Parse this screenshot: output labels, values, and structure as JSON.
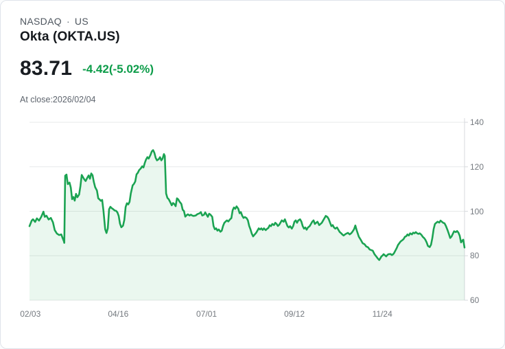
{
  "header": {
    "exchange": "NASDAQ",
    "separator": "·",
    "region": "US",
    "title": "Okta (OKTA.US)",
    "price": "83.71",
    "change": "-4.42(-5.02%)",
    "as_of": "At close:2026/02/04"
  },
  "colors": {
    "change_green": "#0c9c49",
    "line_green": "#1ba352",
    "area_opacity": 0.09,
    "grid": "#e7e9ea",
    "axis": "#d7dadd",
    "axis_text": "#74797f"
  },
  "chart_data": {
    "type": "area",
    "title": "Okta (OKTA.US) 1-year daily price",
    "series_name": "OKTA.US",
    "xlabel": "",
    "ylabel": "",
    "grid": true,
    "legend": null,
    "ylim": [
      60,
      140
    ],
    "yticks": [
      60,
      80,
      100,
      120,
      140
    ],
    "xticks": [
      {
        "label": "02/03",
        "pos": 0.002
      },
      {
        "label": "04/16",
        "pos": 0.204
      },
      {
        "label": "07/01",
        "pos": 0.407
      },
      {
        "label": "09/12",
        "pos": 0.609
      },
      {
        "label": "11/24",
        "pos": 0.811
      }
    ],
    "last_close": 83.71,
    "last_close_date": "2026/02/04",
    "points_format": "[fraction_of_x_range, price]",
    "points": [
      [
        0.0,
        93.3
      ],
      [
        0.005,
        95.8
      ],
      [
        0.008,
        96.4
      ],
      [
        0.013,
        95.2
      ],
      [
        0.017,
        96.8
      ],
      [
        0.022,
        95.8
      ],
      [
        0.027,
        97.5
      ],
      [
        0.032,
        99.8
      ],
      [
        0.035,
        97.5
      ],
      [
        0.039,
        98.0
      ],
      [
        0.044,
        96.3
      ],
      [
        0.049,
        97.0
      ],
      [
        0.054,
        95.0
      ],
      [
        0.058,
        91.5
      ],
      [
        0.063,
        90.0
      ],
      [
        0.068,
        89.3
      ],
      [
        0.073,
        89.6
      ],
      [
        0.076,
        88.0
      ],
      [
        0.079,
        86.5
      ],
      [
        0.08,
        85.8
      ],
      [
        0.082,
        116.0
      ],
      [
        0.085,
        116.5
      ],
      [
        0.088,
        112.2
      ],
      [
        0.092,
        112.9
      ],
      [
        0.095,
        110.6
      ],
      [
        0.098,
        105.4
      ],
      [
        0.101,
        106.4
      ],
      [
        0.104,
        104.8
      ],
      [
        0.107,
        107.8
      ],
      [
        0.11,
        106.3
      ],
      [
        0.114,
        107.5
      ],
      [
        0.117,
        111.3
      ],
      [
        0.12,
        116.3
      ],
      [
        0.123,
        115.3
      ],
      [
        0.126,
        114.3
      ],
      [
        0.129,
        113.6
      ],
      [
        0.133,
        115.1
      ],
      [
        0.136,
        116.1
      ],
      [
        0.139,
        114.6
      ],
      [
        0.142,
        117.0
      ],
      [
        0.145,
        116.2
      ],
      [
        0.148,
        113.1
      ],
      [
        0.151,
        110.8
      ],
      [
        0.155,
        109.3
      ],
      [
        0.158,
        105.8
      ],
      [
        0.161,
        105.3
      ],
      [
        0.164,
        104.7
      ],
      [
        0.167,
        105.1
      ],
      [
        0.17,
        100.2
      ],
      [
        0.174,
        91.9
      ],
      [
        0.177,
        90.2
      ],
      [
        0.18,
        92.3
      ],
      [
        0.183,
        100.9
      ],
      [
        0.186,
        102.0
      ],
      [
        0.189,
        101.4
      ],
      [
        0.192,
        101.0
      ],
      [
        0.196,
        100.3
      ],
      [
        0.199,
        100.2
      ],
      [
        0.202,
        99.5
      ],
      [
        0.205,
        97.9
      ],
      [
        0.208,
        94.4
      ],
      [
        0.211,
        92.8
      ],
      [
        0.215,
        93.5
      ],
      [
        0.218,
        96.1
      ],
      [
        0.221,
        101.9
      ],
      [
        0.224,
        103.6
      ],
      [
        0.227,
        103.1
      ],
      [
        0.23,
        104.2
      ],
      [
        0.233,
        108.1
      ],
      [
        0.237,
        111.6
      ],
      [
        0.24,
        112.3
      ],
      [
        0.243,
        113.4
      ],
      [
        0.246,
        116.6
      ],
      [
        0.249,
        117.3
      ],
      [
        0.252,
        118.5
      ],
      [
        0.256,
        119.3
      ],
      [
        0.259,
        120.2
      ],
      [
        0.262,
        119.7
      ],
      [
        0.265,
        121.7
      ],
      [
        0.268,
        123.3
      ],
      [
        0.271,
        124.3
      ],
      [
        0.274,
        123.7
      ],
      [
        0.278,
        125.3
      ],
      [
        0.281,
        126.9
      ],
      [
        0.284,
        127.5
      ],
      [
        0.287,
        126.3
      ],
      [
        0.29,
        124.0
      ],
      [
        0.293,
        122.9
      ],
      [
        0.297,
        123.4
      ],
      [
        0.3,
        124.3
      ],
      [
        0.303,
        122.9
      ],
      [
        0.306,
        123.7
      ],
      [
        0.309,
        125.7
      ],
      [
        0.311,
        124.9
      ],
      [
        0.314,
        108.0
      ],
      [
        0.317,
        106.0
      ],
      [
        0.32,
        105.4
      ],
      [
        0.323,
        104.3
      ],
      [
        0.327,
        102.7
      ],
      [
        0.33,
        103.7
      ],
      [
        0.333,
        103.2
      ],
      [
        0.336,
        102.3
      ],
      [
        0.339,
        105.8
      ],
      [
        0.342,
        105.3
      ],
      [
        0.345,
        104.3
      ],
      [
        0.349,
        103.3
      ],
      [
        0.352,
        100.7
      ],
      [
        0.355,
        100.1
      ],
      [
        0.358,
        97.6
      ],
      [
        0.361,
        98.2
      ],
      [
        0.364,
        98.6
      ],
      [
        0.368,
        98.1
      ],
      [
        0.371,
        98.5
      ],
      [
        0.374,
        98.1
      ],
      [
        0.377,
        97.9
      ],
      [
        0.382,
        98.1
      ],
      [
        0.386,
        98.7
      ],
      [
        0.391,
        99.1
      ],
      [
        0.394,
        99.6
      ],
      [
        0.397,
        98.1
      ],
      [
        0.401,
        98.4
      ],
      [
        0.404,
        99.5
      ],
      [
        0.407,
        98.5
      ],
      [
        0.41,
        97.5
      ],
      [
        0.413,
        98.9
      ],
      [
        0.416,
        98.5
      ],
      [
        0.42,
        97.5
      ],
      [
        0.423,
        93.4
      ],
      [
        0.426,
        91.9
      ],
      [
        0.429,
        92.3
      ],
      [
        0.432,
        91.3
      ],
      [
        0.435,
        91.8
      ],
      [
        0.439,
        90.8
      ],
      [
        0.442,
        91.3
      ],
      [
        0.445,
        93.4
      ],
      [
        0.448,
        94.8
      ],
      [
        0.451,
        95.4
      ],
      [
        0.454,
        95.9
      ],
      [
        0.457,
        95.4
      ],
      [
        0.461,
        96.4
      ],
      [
        0.464,
        96.9
      ],
      [
        0.467,
        100.5
      ],
      [
        0.47,
        101.7
      ],
      [
        0.473,
        101.1
      ],
      [
        0.476,
        102.2
      ],
      [
        0.48,
        101.1
      ],
      [
        0.483,
        99.1
      ],
      [
        0.486,
        99.6
      ],
      [
        0.489,
        98.0
      ],
      [
        0.492,
        97.0
      ],
      [
        0.495,
        97.4
      ],
      [
        0.499,
        96.9
      ],
      [
        0.502,
        95.9
      ],
      [
        0.505,
        93.4
      ],
      [
        0.508,
        91.8
      ],
      [
        0.511,
        89.9
      ],
      [
        0.514,
        88.7
      ],
      [
        0.517,
        89.4
      ],
      [
        0.521,
        90.3
      ],
      [
        0.524,
        91.3
      ],
      [
        0.527,
        92.3
      ],
      [
        0.53,
        91.8
      ],
      [
        0.533,
        92.3
      ],
      [
        0.536,
        91.6
      ],
      [
        0.539,
        92.3
      ],
      [
        0.543,
        91.5
      ],
      [
        0.546,
        92.1
      ],
      [
        0.549,
        92.5
      ],
      [
        0.552,
        93.7
      ],
      [
        0.555,
        93.3
      ],
      [
        0.558,
        94.3
      ],
      [
        0.562,
        93.8
      ],
      [
        0.565,
        94.8
      ],
      [
        0.568,
        94.3
      ],
      [
        0.571,
        93.4
      ],
      [
        0.574,
        93.9
      ],
      [
        0.577,
        94.9
      ],
      [
        0.58,
        95.9
      ],
      [
        0.584,
        95.3
      ],
      [
        0.587,
        96.4
      ],
      [
        0.59,
        94.8
      ],
      [
        0.593,
        93.3
      ],
      [
        0.596,
        92.7
      ],
      [
        0.599,
        93.3
      ],
      [
        0.603,
        92.2
      ],
      [
        0.606,
        93.3
      ],
      [
        0.609,
        95.3
      ],
      [
        0.612,
        95.9
      ],
      [
        0.615,
        94.8
      ],
      [
        0.618,
        95.9
      ],
      [
        0.622,
        96.4
      ],
      [
        0.625,
        95.3
      ],
      [
        0.628,
        93.3
      ],
      [
        0.631,
        92.2
      ],
      [
        0.634,
        92.7
      ],
      [
        0.637,
        91.7
      ],
      [
        0.64,
        92.7
      ],
      [
        0.644,
        93.3
      ],
      [
        0.647,
        94.3
      ],
      [
        0.65,
        95.3
      ],
      [
        0.653,
        95.9
      ],
      [
        0.656,
        94.3
      ],
      [
        0.659,
        94.8
      ],
      [
        0.662,
        95.3
      ],
      [
        0.666,
        93.8
      ],
      [
        0.669,
        94.3
      ],
      [
        0.672,
        94.8
      ],
      [
        0.675,
        95.9
      ],
      [
        0.678,
        96.9
      ],
      [
        0.681,
        97.9
      ],
      [
        0.685,
        97.4
      ],
      [
        0.688,
        96.4
      ],
      [
        0.691,
        94.8
      ],
      [
        0.694,
        93.3
      ],
      [
        0.697,
        93.8
      ],
      [
        0.7,
        92.7
      ],
      [
        0.703,
        92.2
      ],
      [
        0.707,
        92.7
      ],
      [
        0.71,
        91.7
      ],
      [
        0.713,
        90.7
      ],
      [
        0.716,
        90.2
      ],
      [
        0.719,
        89.6
      ],
      [
        0.722,
        89.1
      ],
      [
        0.727,
        89.8
      ],
      [
        0.732,
        90.3
      ],
      [
        0.736,
        89.6
      ],
      [
        0.74,
        90.2
      ],
      [
        0.743,
        91.0
      ],
      [
        0.746,
        91.9
      ],
      [
        0.749,
        93.6
      ],
      [
        0.752,
        91.5
      ],
      [
        0.757,
        88.6
      ],
      [
        0.762,
        87.0
      ],
      [
        0.766,
        85.6
      ],
      [
        0.77,
        85.2
      ],
      [
        0.774,
        84.2
      ],
      [
        0.778,
        83.8
      ],
      [
        0.782,
        82.8
      ],
      [
        0.789,
        82.3
      ],
      [
        0.793,
        80.7
      ],
      [
        0.797,
        79.7
      ],
      [
        0.801,
        78.7
      ],
      [
        0.804,
        78.1
      ],
      [
        0.806,
        78.7
      ],
      [
        0.809,
        79.7
      ],
      [
        0.812,
        80.2
      ],
      [
        0.814,
        80.7
      ],
      [
        0.817,
        80.2
      ],
      [
        0.82,
        79.7
      ],
      [
        0.822,
        80.2
      ],
      [
        0.825,
        80.7
      ],
      [
        0.83,
        80.8
      ],
      [
        0.833,
        80.3
      ],
      [
        0.836,
        80.7
      ],
      [
        0.838,
        81.2
      ],
      [
        0.841,
        82.3
      ],
      [
        0.844,
        83.4
      ],
      [
        0.847,
        84.8
      ],
      [
        0.85,
        85.6
      ],
      [
        0.853,
        86.4
      ],
      [
        0.857,
        87.0
      ],
      [
        0.86,
        87.5
      ],
      [
        0.863,
        88.5
      ],
      [
        0.866,
        88.8
      ],
      [
        0.869,
        89.6
      ],
      [
        0.872,
        89.1
      ],
      [
        0.875,
        90.1
      ],
      [
        0.879,
        89.6
      ],
      [
        0.882,
        90.4
      ],
      [
        0.885,
        90.1
      ],
      [
        0.888,
        90.6
      ],
      [
        0.891,
        90.1
      ],
      [
        0.894,
        89.8
      ],
      [
        0.897,
        90.1
      ],
      [
        0.901,
        89.4
      ],
      [
        0.904,
        88.5
      ],
      [
        0.907,
        88.0
      ],
      [
        0.91,
        87.2
      ],
      [
        0.913,
        86.0
      ],
      [
        0.916,
        84.4
      ],
      [
        0.92,
        83.9
      ],
      [
        0.923,
        85.0
      ],
      [
        0.926,
        88.0
      ],
      [
        0.929,
        92.0
      ],
      [
        0.932,
        94.3
      ],
      [
        0.935,
        94.8
      ],
      [
        0.938,
        95.3
      ],
      [
        0.942,
        94.9
      ],
      [
        0.945,
        95.8
      ],
      [
        0.948,
        95.3
      ],
      [
        0.951,
        94.8
      ],
      [
        0.954,
        94.6
      ],
      [
        0.957,
        93.5
      ],
      [
        0.961,
        91.5
      ],
      [
        0.964,
        89.8
      ],
      [
        0.967,
        88.0
      ],
      [
        0.97,
        88.6
      ],
      [
        0.973,
        89.8
      ],
      [
        0.976,
        91.0
      ],
      [
        0.98,
        90.6
      ],
      [
        0.983,
        91.1
      ],
      [
        0.986,
        90.4
      ],
      [
        0.989,
        89.0
      ],
      [
        0.992,
        86.0
      ],
      [
        0.995,
        86.8
      ],
      [
        0.997,
        87.2
      ],
      [
        1.0,
        83.7
      ]
    ]
  }
}
